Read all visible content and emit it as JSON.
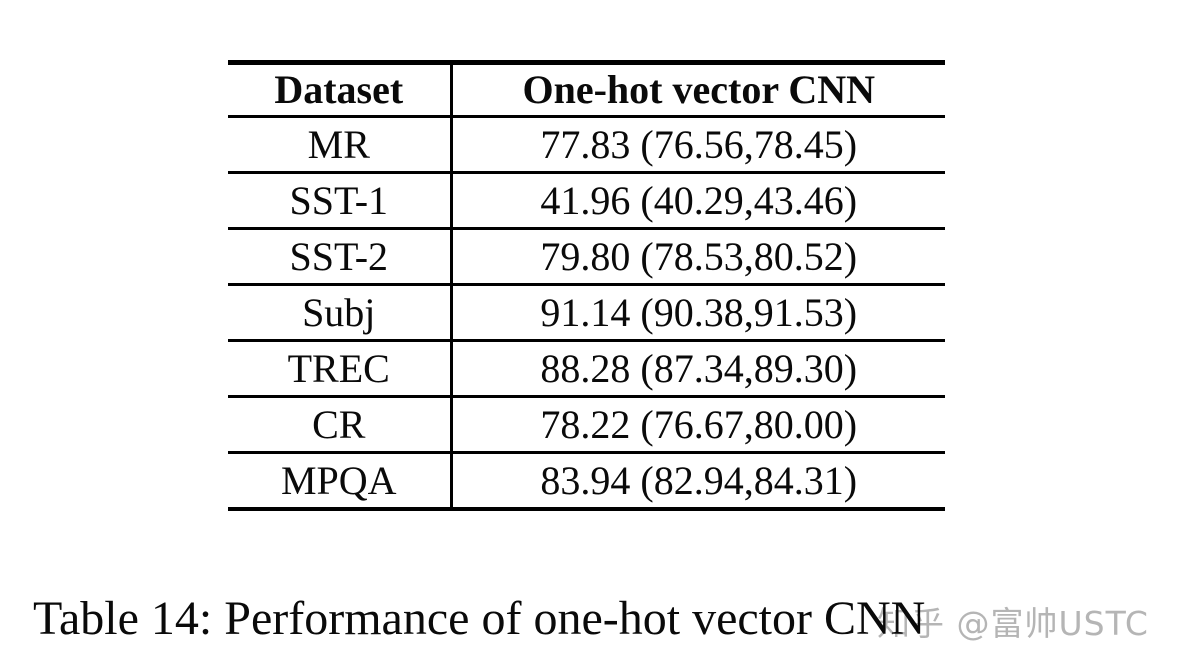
{
  "table": {
    "headers": [
      "Dataset",
      "One-hot vector CNN"
    ],
    "rows": [
      {
        "dataset": "MR",
        "value": "77.83 (76.56,78.45)"
      },
      {
        "dataset": "SST-1",
        "value": "41.96 (40.29,43.46)"
      },
      {
        "dataset": "SST-2",
        "value": "79.80 (78.53,80.52)"
      },
      {
        "dataset": "Subj",
        "value": "91.14 (90.38,91.53)"
      },
      {
        "dataset": "TREC",
        "value": "88.28 (87.34,89.30)"
      },
      {
        "dataset": "CR",
        "value": "78.22 (76.67,80.00)"
      },
      {
        "dataset": "MPQA",
        "value": "83.94 (82.94,84.31)"
      }
    ]
  },
  "caption": {
    "text": "Table 14: Performance of one-hot vector CNN"
  },
  "watermark": {
    "text": "知乎 @富帅USTC",
    "color": "#b5b5b5"
  },
  "colors": {
    "background": "#ffffff",
    "text": "#0a0a0a",
    "rule": "#000000"
  }
}
